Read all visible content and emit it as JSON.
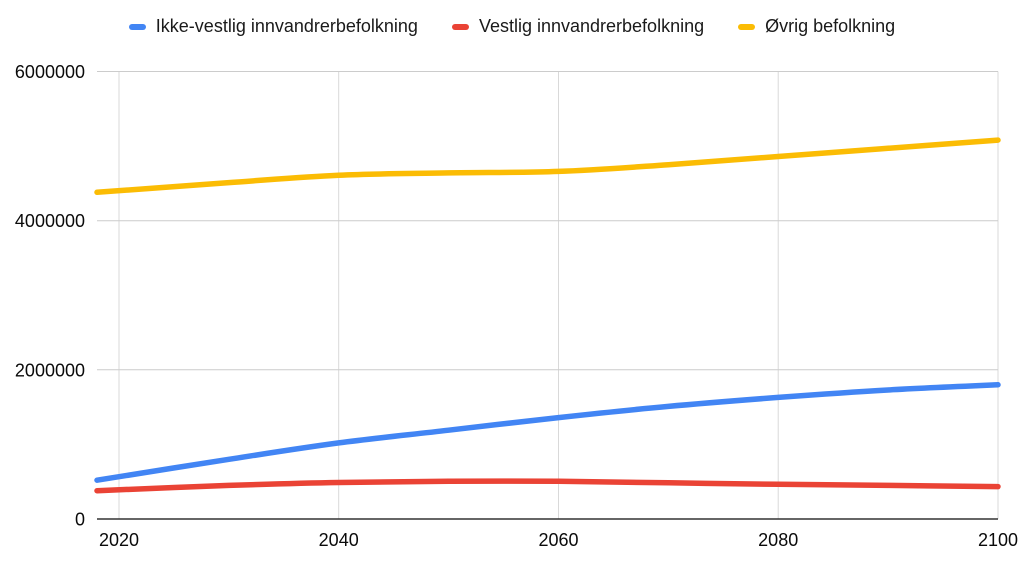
{
  "legend": {
    "items": [
      {
        "label": "Ikke-vestlig innvandrerbefolkning",
        "color": "#4285F4"
      },
      {
        "label": "Vestlig innvandrerbefolkning",
        "color": "#EA4335"
      },
      {
        "label": "Øvrig befolkning",
        "color": "#FBBC04"
      }
    ]
  },
  "chart_data": {
    "type": "line",
    "title": "",
    "xlabel": "",
    "ylabel": "",
    "x": [
      2018,
      2030,
      2040,
      2050,
      2060,
      2070,
      2080,
      2090,
      2100
    ],
    "series": [
      {
        "name": "Ikke-vestlig innvandrerbefolkning",
        "color": "#4285F4",
        "values": [
          520000,
          800000,
          1020000,
          1190000,
          1360000,
          1510000,
          1630000,
          1730000,
          1800000
        ]
      },
      {
        "name": "Vestlig innvandrerbefolkning",
        "color": "#EA4335",
        "values": [
          380000,
          450000,
          490000,
          505000,
          505000,
          485000,
          465000,
          450000,
          435000
        ]
      },
      {
        "name": "Øvrig befolkning",
        "color": "#FBBC04",
        "values": [
          4380000,
          4510000,
          4610000,
          4640000,
          4660000,
          4750000,
          4860000,
          4970000,
          5080000
        ]
      }
    ],
    "xlim": [
      2018,
      2100
    ],
    "ylim": [
      0,
      6000000
    ],
    "xticks": [
      2020,
      2040,
      2060,
      2080,
      2100
    ],
    "yticks": [
      0,
      2000000,
      4000000,
      6000000
    ],
    "grid": true,
    "legend_position": "top",
    "line_smooth": true
  },
  "colors": {
    "background": "#ffffff",
    "h_gridline": "#cccccc",
    "v_gridline": "#d9d9d9",
    "axis_line": "#333333",
    "tick_text": "#0a0a0a",
    "legend_text": "#1a1a1a"
  }
}
